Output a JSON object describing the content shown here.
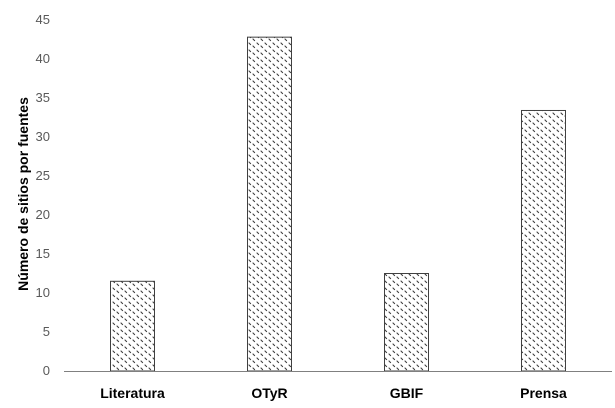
{
  "chart_data": {
    "type": "bar",
    "title": "",
    "xlabel": "",
    "ylabel": "Número de sitios por fuentes",
    "categories": [
      "Literatura",
      "OTyR",
      "GBIF",
      "Prensa"
    ],
    "values": [
      11.5,
      42.8,
      12.5,
      33.4
    ],
    "ylim": [
      0,
      45
    ],
    "yticks": [
      0,
      5,
      10,
      15,
      20,
      25,
      30,
      35,
      40,
      45
    ],
    "grid": false,
    "legend": "none",
    "bar_fill": "dotted-pattern",
    "colors": {
      "bar_stroke": "#404040",
      "pattern_dot": "#404040",
      "axis": "#808080",
      "tick_text": "#595959"
    }
  }
}
